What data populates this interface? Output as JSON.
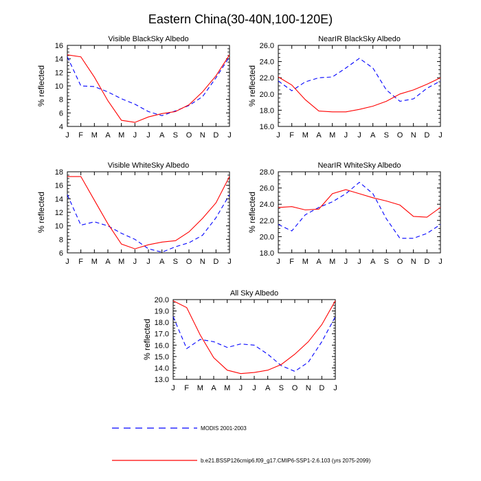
{
  "title": "Eastern China(30-40N,100-120E)",
  "months": [
    "J",
    "F",
    "M",
    "A",
    "M",
    "J",
    "J",
    "A",
    "S",
    "O",
    "N",
    "D",
    "J"
  ],
  "legend": {
    "modis": "MODIS 2001-2003",
    "model": "b.e21.BSSP126cmip6.f09_g17.CMIP6-SSP1-2.6.103 (yrs 2075-2099)"
  },
  "colors": {
    "modis": "#0000ff",
    "model": "#ff0000"
  },
  "chart_data": [
    {
      "type": "line",
      "title": "Visible BlackSky Albedo",
      "ylabel": "% reflected",
      "ylim": [
        4,
        16
      ],
      "yticks": [
        "4",
        "6",
        "8",
        "10",
        "12",
        "14",
        "16"
      ],
      "categories": [
        "J",
        "F",
        "M",
        "A",
        "M",
        "J",
        "J",
        "A",
        "S",
        "O",
        "N",
        "D",
        "J"
      ],
      "series": [
        {
          "name": "MODIS 2001-2003",
          "style": "dashed",
          "values": [
            14.3,
            10.0,
            9.9,
            9.1,
            8.1,
            7.3,
            6.2,
            5.6,
            6.3,
            7.1,
            8.4,
            11.2,
            14.3
          ]
        },
        {
          "name": "b.e21.BSSP126cmip6.f09_g17.CMIP6-SSP1-2.6.103 (yrs 2075-2099)",
          "style": "solid",
          "values": [
            14.6,
            14.3,
            11.3,
            7.8,
            4.9,
            4.6,
            5.4,
            5.9,
            6.2,
            7.2,
            9.1,
            11.5,
            14.6
          ]
        }
      ]
    },
    {
      "type": "line",
      "title": "NearIR BlackSky Albedo",
      "ylabel": "% reflected",
      "ylim": [
        16,
        26
      ],
      "yticks": [
        "16.0",
        "18.0",
        "20.0",
        "22.0",
        "24.0",
        "26.0"
      ],
      "categories": [
        "J",
        "F",
        "M",
        "A",
        "M",
        "J",
        "J",
        "A",
        "S",
        "O",
        "N",
        "D",
        "J"
      ],
      "series": [
        {
          "name": "MODIS 2001-2003",
          "style": "dashed",
          "values": [
            21.6,
            20.4,
            21.5,
            22.0,
            22.1,
            23.2,
            24.4,
            23.2,
            20.5,
            19.1,
            19.4,
            20.7,
            21.6
          ]
        },
        {
          "name": "b.e21.BSSP126cmip6.f09_g17.CMIP6-SSP1-2.6.103 (yrs 2075-2099)",
          "style": "solid",
          "values": [
            22.1,
            21.1,
            19.3,
            17.9,
            17.8,
            17.8,
            18.1,
            18.5,
            19.1,
            20.0,
            20.5,
            21.2,
            22.0
          ]
        }
      ]
    },
    {
      "type": "line",
      "title": "Visible WhiteSky Albedo",
      "ylabel": "% reflected",
      "ylim": [
        6,
        18
      ],
      "yticks": [
        "6",
        "8",
        "10",
        "12",
        "14",
        "16",
        "18"
      ],
      "categories": [
        "J",
        "F",
        "M",
        "A",
        "M",
        "J",
        "J",
        "A",
        "S",
        "O",
        "N",
        "D",
        "J"
      ],
      "series": [
        {
          "name": "MODIS 2001-2003",
          "style": "dashed",
          "values": [
            14.6,
            10.1,
            10.6,
            10.0,
            8.9,
            8.0,
            6.6,
            6.1,
            6.9,
            7.5,
            8.6,
            11.2,
            14.6
          ]
        },
        {
          "name": "b.e21.BSSP126cmip6.f09_g17.CMIP6-SSP1-2.6.103 (yrs 2075-2099)",
          "style": "solid",
          "values": [
            17.3,
            17.3,
            13.8,
            10.3,
            7.3,
            6.6,
            7.2,
            7.6,
            7.8,
            9.1,
            11.1,
            13.4,
            17.3
          ]
        }
      ]
    },
    {
      "type": "line",
      "title": "NearIR WhiteSky Albedo",
      "ylabel": "% reflected",
      "ylim": [
        18,
        28
      ],
      "yticks": [
        "18.0",
        "20.0",
        "22.0",
        "24.0",
        "26.0",
        "28.0"
      ],
      "categories": [
        "J",
        "F",
        "M",
        "A",
        "M",
        "J",
        "J",
        "A",
        "S",
        "O",
        "N",
        "D",
        "J"
      ],
      "series": [
        {
          "name": "MODIS 2001-2003",
          "style": "dashed",
          "values": [
            21.5,
            20.7,
            22.7,
            23.6,
            24.3,
            25.3,
            26.7,
            25.3,
            22.2,
            19.8,
            19.8,
            20.4,
            21.5
          ]
        },
        {
          "name": "b.e21.BSSP126cmip6.f09_g17.CMIP6-SSP1-2.6.103 (yrs 2075-2099)",
          "style": "solid",
          "values": [
            23.6,
            23.7,
            23.3,
            23.4,
            25.3,
            25.8,
            25.3,
            24.8,
            24.4,
            23.9,
            22.5,
            22.4,
            23.6
          ]
        }
      ]
    },
    {
      "type": "line",
      "title": "All Sky Albedo",
      "ylabel": "% reflected",
      "ylim": [
        13,
        20
      ],
      "yticks": [
        "13.0",
        "14.0",
        "15.0",
        "16.0",
        "17.0",
        "18.0",
        "19.0",
        "20.0"
      ],
      "categories": [
        "J",
        "F",
        "M",
        "A",
        "M",
        "J",
        "J",
        "A",
        "S",
        "O",
        "N",
        "D",
        "J"
      ],
      "series": [
        {
          "name": "MODIS 2001-2003",
          "style": "dashed",
          "values": [
            18.5,
            15.7,
            16.5,
            16.3,
            15.8,
            16.1,
            16.0,
            15.2,
            14.2,
            13.7,
            14.5,
            16.3,
            18.5
          ]
        },
        {
          "name": "b.e21.BSSP126cmip6.f09_g17.CMIP6-SSP1-2.6.103 (yrs 2075-2099)",
          "style": "solid",
          "values": [
            19.9,
            19.3,
            16.9,
            14.9,
            13.8,
            13.5,
            13.6,
            13.8,
            14.3,
            15.2,
            16.3,
            17.8,
            19.9
          ]
        }
      ]
    }
  ]
}
